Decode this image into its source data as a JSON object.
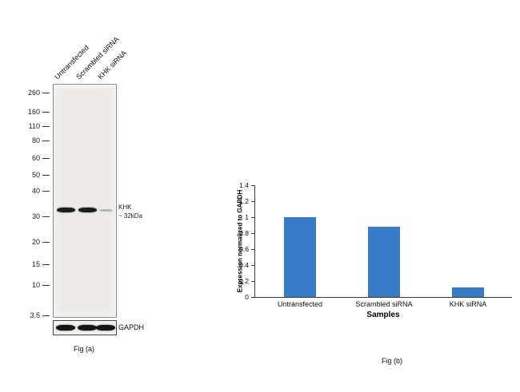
{
  "figure": {
    "panel_a": {
      "lane_labels": [
        "Untransfected",
        "Scrambled siRNA",
        "KHK siRNA"
      ],
      "mw_markers": [
        "260",
        "160",
        "110",
        "80",
        "60",
        "50",
        "40",
        "30",
        "20",
        "15",
        "10",
        "3.5"
      ],
      "band_annotation": {
        "protein": "KHK",
        "size": "~ 32kDa"
      },
      "target_band": {
        "intensities": [
          1.0,
          0.95,
          0.15
        ]
      },
      "control_band": {
        "label": "GAPDH",
        "intensities": [
          1.0,
          1.0,
          1.0
        ]
      },
      "loading_control_label": "GAPDH",
      "caption": "Fig (a)"
    },
    "panel_b": {
      "caption": "Fig (b)"
    }
  },
  "chart_data": {
    "type": "bar",
    "categories": [
      "Untransfected",
      "Scrambled siRNA",
      "KHK siRNA"
    ],
    "values": [
      1.0,
      0.88,
      0.12
    ],
    "title": "",
    "xlabel": "Samples",
    "ylabel": "Expression normalized to GAPDH",
    "ylim": [
      0,
      1.4
    ],
    "yticks": [
      0,
      0.2,
      0.4,
      0.6,
      0.8,
      1.0,
      1.2,
      1.4
    ],
    "bar_color": "#3A7BC8",
    "grid": false,
    "legend": "none"
  }
}
